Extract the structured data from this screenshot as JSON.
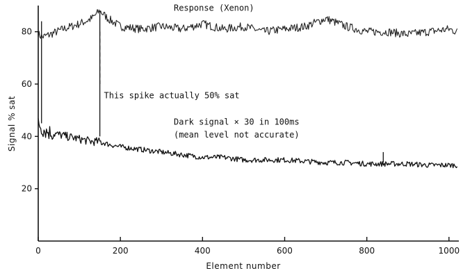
{
  "chart_data": {
    "type": "line",
    "title": "",
    "xlabel": "Element number",
    "ylabel": "Signal % sat",
    "xlim": [
      0,
      1024
    ],
    "ylim": [
      0,
      90
    ],
    "x_ticks": [
      0,
      200,
      400,
      600,
      800,
      1000
    ],
    "y_ticks": [
      20,
      40,
      60,
      80
    ],
    "grid": false,
    "legend": "none",
    "series": [
      {
        "name": "Response (Xenon)",
        "x": [
          0,
          10,
          30,
          60,
          100,
          130,
          150,
          170,
          200,
          250,
          300,
          350,
          400,
          450,
          500,
          550,
          600,
          650,
          700,
          750,
          800,
          850,
          900,
          950,
          1000,
          1020
        ],
        "y": [
          79,
          78,
          79,
          81,
          83,
          85,
          88,
          85,
          82,
          81,
          82,
          81,
          83,
          81,
          82,
          80,
          81,
          82,
          85,
          82,
          80,
          80,
          79,
          80,
          81,
          80
        ],
        "color": "#222222"
      },
      {
        "name": "Dark signal × 30 in 100ms",
        "x": [
          0,
          5,
          10,
          20,
          40,
          70,
          100,
          130,
          150,
          170,
          200,
          250,
          300,
          350,
          400,
          450,
          500,
          550,
          600,
          650,
          700,
          750,
          800,
          850,
          900,
          950,
          1000,
          1020
        ],
        "y": [
          46,
          44,
          43,
          42,
          41,
          40,
          39,
          38,
          38,
          37,
          36,
          35,
          34,
          33,
          32,
          32,
          31,
          31,
          31,
          30.5,
          30,
          30,
          29.5,
          29.5,
          29.5,
          29,
          29,
          29
        ],
        "color": "#111111"
      }
    ],
    "annotations": [
      {
        "text": "Response (Xenon)",
        "x": 330,
        "y": 88
      },
      {
        "text": "This spike actually 50% sat",
        "x": 160,
        "y": 54.5
      },
      {
        "text": "Dark signal × 30 in 100ms",
        "x": 330,
        "y": 44.5
      },
      {
        "text": "(mean level not accurate)",
        "x": 330,
        "y": 39.5
      }
    ],
    "spikes": [
      {
        "x": 8,
        "y_from": 45,
        "y_to": 84
      },
      {
        "x": 150,
        "y_from": 40,
        "y_to": 88
      },
      {
        "x": 840,
        "y_from": 30,
        "y_to": 34
      }
    ]
  }
}
